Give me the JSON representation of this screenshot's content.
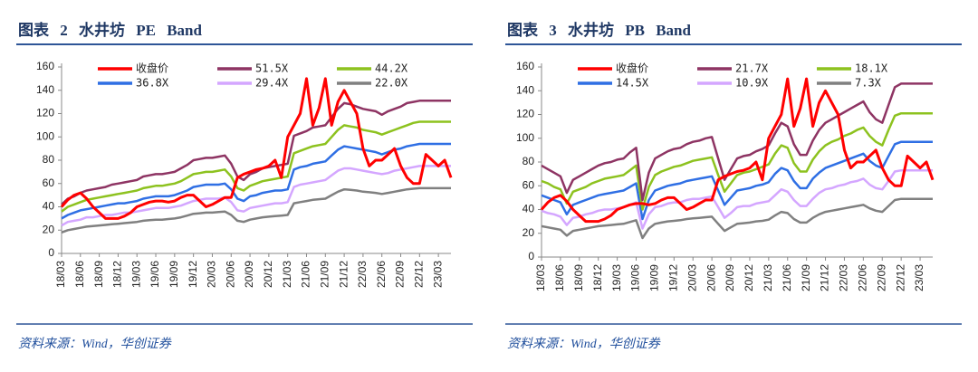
{
  "chart_data": [
    {
      "type": "line",
      "title": "图表 2 水井坊 PE Band",
      "source": "资料来源：Wind，华创证券",
      "categories": [
        "18/03",
        null,
        null,
        "18/06",
        null,
        null,
        "18/09",
        null,
        null,
        "18/12",
        null,
        null,
        "19/03",
        null,
        null,
        "19/06",
        null,
        null,
        "19/09",
        null,
        null,
        "19/12",
        null,
        null,
        "20/03",
        null,
        null,
        "20/06",
        null,
        null,
        "20/09",
        null,
        null,
        "20/12",
        null,
        null,
        "21/03",
        null,
        null,
        "21/06",
        null,
        null,
        "21/09",
        null,
        null,
        "21/12",
        null,
        null,
        "22/03",
        null,
        null,
        "22/06",
        null,
        null,
        "22/09",
        null,
        null,
        "22/12",
        null,
        null,
        "23/03",
        null,
        null
      ],
      "ylim": [
        0,
        160
      ],
      "yticks": [
        0,
        20,
        40,
        60,
        80,
        100,
        120,
        140,
        160
      ],
      "series": [
        {
          "name": "收盘价",
          "color": "#ff0000",
          "values": [
            40,
            46,
            50,
            52,
            47,
            40,
            35,
            30,
            30,
            30,
            32,
            35,
            40,
            42,
            44,
            45,
            45,
            44,
            45,
            48,
            50,
            50,
            45,
            40,
            42,
            45,
            48,
            48,
            65,
            68,
            70,
            72,
            73,
            75,
            80,
            65,
            100,
            110,
            120,
            150,
            110,
            125,
            150,
            110,
            130,
            140,
            130,
            120,
            90,
            75,
            80,
            80,
            85,
            90,
            75,
            65,
            60,
            60,
            85,
            80,
            75,
            80,
            65
          ]
        },
        {
          "name": "51.5X",
          "color": "#8e3463",
          "values": [
            42,
            47,
            49,
            52,
            54,
            55,
            56,
            57,
            59,
            60,
            61,
            62,
            63,
            66,
            67,
            68,
            68,
            69,
            70,
            73,
            76,
            80,
            81,
            82,
            82,
            83,
            84,
            77,
            66,
            63,
            68,
            70,
            73,
            74,
            75,
            76,
            77,
            101,
            103,
            105,
            108,
            109,
            110,
            117,
            124,
            129,
            128,
            126,
            124,
            123,
            122,
            119,
            122,
            124,
            126,
            129,
            130,
            131,
            131,
            131,
            131,
            131,
            131
          ]
        },
        {
          "name": "44.2X",
          "color": "#8dc21f",
          "values": [
            36,
            40,
            42,
            44,
            46,
            47,
            48,
            49,
            50,
            51,
            52,
            53,
            54,
            56,
            57,
            58,
            58,
            59,
            60,
            62,
            65,
            68,
            69,
            70,
            70,
            71,
            72,
            66,
            56,
            54,
            58,
            60,
            62,
            63,
            64,
            65,
            66,
            86,
            88,
            90,
            92,
            93,
            94,
            100,
            106,
            110,
            109,
            108,
            106,
            105,
            104,
            102,
            104,
            106,
            108,
            110,
            112,
            113,
            113,
            113,
            113,
            113,
            113
          ]
        },
        {
          "name": "36.8X",
          "color": "#2f6fe4",
          "values": [
            30,
            33,
            35,
            37,
            38,
            39,
            40,
            41,
            42,
            43,
            43,
            44,
            45,
            47,
            48,
            49,
            49,
            49,
            50,
            52,
            54,
            57,
            58,
            59,
            59,
            59,
            60,
            55,
            47,
            45,
            49,
            50,
            52,
            53,
            54,
            54,
            55,
            72,
            74,
            75,
            77,
            78,
            79,
            84,
            89,
            92,
            91,
            90,
            89,
            88,
            87,
            85,
            87,
            89,
            90,
            92,
            93,
            94,
            94,
            94,
            94,
            94,
            94
          ]
        },
        {
          "name": "29.4X",
          "color": "#d4a6ff",
          "values": [
            24,
            27,
            28,
            29,
            31,
            31,
            32,
            33,
            33,
            34,
            35,
            35,
            36,
            37,
            38,
            39,
            39,
            39,
            40,
            41,
            43,
            45,
            46,
            47,
            47,
            47,
            48,
            44,
            37,
            36,
            39,
            40,
            41,
            42,
            43,
            43,
            44,
            57,
            59,
            60,
            61,
            62,
            63,
            67,
            71,
            73,
            73,
            72,
            71,
            70,
            69,
            68,
            69,
            71,
            72,
            73,
            74,
            75,
            75,
            75,
            75,
            75,
            75
          ]
        },
        {
          "name": "22.0X",
          "color": "#808080",
          "values": [
            18,
            20,
            21,
            22,
            23,
            23.5,
            24,
            24.5,
            25,
            25.5,
            26,
            26.5,
            27,
            28,
            28.5,
            29,
            29,
            29.5,
            30,
            31,
            32.5,
            34,
            34.5,
            35,
            35,
            35.5,
            36,
            33,
            28,
            27,
            29,
            30,
            31,
            31.5,
            32,
            32.5,
            33,
            43,
            44,
            45,
            46,
            46.5,
            47,
            50,
            53,
            55,
            54.5,
            54,
            53,
            52.5,
            52,
            51,
            52,
            53,
            54,
            55,
            55.5,
            56,
            56,
            56,
            56,
            56,
            56
          ]
        }
      ]
    },
    {
      "type": "line",
      "title": "图表 3 水井坊 PB Band",
      "source": "资料来源：Wind，华创证券",
      "categories": [
        "18/03",
        null,
        null,
        "18/06",
        null,
        null,
        "18/09",
        null,
        null,
        "18/12",
        null,
        null,
        "19/03",
        null,
        null,
        "19/06",
        null,
        null,
        "19/09",
        null,
        null,
        "19/12",
        null,
        null,
        "20/03",
        null,
        null,
        "20/06",
        null,
        null,
        "20/09",
        null,
        null,
        "20/12",
        null,
        null,
        "21/03",
        null,
        null,
        "21/06",
        null,
        null,
        "21/09",
        null,
        null,
        "21/12",
        null,
        null,
        "22/03",
        null,
        null,
        "22/06",
        null,
        null,
        "22/09",
        null,
        null,
        "22/12",
        null,
        null,
        "23/03",
        null,
        null
      ],
      "ylim": [
        0,
        160
      ],
      "yticks": [
        0,
        20,
        40,
        60,
        80,
        100,
        120,
        140,
        160
      ],
      "series": [
        {
          "name": "收盘价",
          "color": "#ff0000",
          "values": [
            40,
            46,
            50,
            52,
            47,
            40,
            35,
            30,
            30,
            30,
            32,
            35,
            40,
            42,
            44,
            45,
            45,
            44,
            45,
            48,
            50,
            50,
            45,
            40,
            42,
            45,
            48,
            48,
            65,
            68,
            70,
            72,
            73,
            75,
            80,
            65,
            100,
            110,
            120,
            150,
            110,
            125,
            150,
            110,
            130,
            140,
            130,
            120,
            90,
            75,
            80,
            80,
            85,
            90,
            75,
            65,
            60,
            60,
            85,
            80,
            75,
            80,
            65
          ]
        },
        {
          "name": "21.7X",
          "color": "#8e3463",
          "values": [
            77,
            74,
            71,
            68,
            54,
            65,
            68,
            71,
            74,
            77,
            79,
            80,
            82,
            83,
            88,
            92,
            48,
            71,
            83,
            86,
            89,
            91,
            92,
            95,
            97,
            98,
            100,
            101,
            83,
            65,
            74,
            83,
            85,
            86,
            89,
            91,
            94,
            104,
            113,
            110,
            95,
            86,
            86,
            98,
            107,
            113,
            116,
            119,
            122,
            125,
            128,
            131,
            122,
            116,
            113,
            128,
            143,
            146,
            146,
            146,
            146,
            146,
            146
          ]
        },
        {
          "name": "18.1X",
          "color": "#8dc21f",
          "values": [
            64,
            62,
            59,
            57,
            45,
            55,
            57,
            59,
            62,
            64,
            66,
            67,
            68,
            69,
            73,
            77,
            40,
            59,
            69,
            72,
            74,
            76,
            77,
            79,
            81,
            82,
            83,
            84,
            69,
            55,
            62,
            69,
            71,
            72,
            74,
            76,
            78,
            87,
            94,
            92,
            79,
            72,
            72,
            82,
            89,
            94,
            97,
            99,
            102,
            104,
            107,
            109,
            102,
            97,
            94,
            107,
            119,
            121,
            121,
            121,
            121,
            121,
            121
          ]
        },
        {
          "name": "14.5X",
          "color": "#2f6fe4",
          "values": [
            52,
            50,
            48,
            46,
            36,
            44,
            46,
            48,
            50,
            52,
            53,
            54,
            55,
            56,
            59,
            62,
            32,
            48,
            56,
            58,
            60,
            61,
            62,
            64,
            65,
            66,
            67,
            68,
            56,
            44,
            50,
            56,
            57,
            58,
            60,
            61,
            63,
            70,
            75,
            73,
            64,
            58,
            58,
            66,
            71,
            75,
            77,
            79,
            81,
            83,
            85,
            87,
            81,
            77,
            75,
            85,
            95,
            97,
            97,
            97,
            97,
            97,
            97
          ]
        },
        {
          "name": "10.9X",
          "color": "#d4a6ff",
          "values": [
            39,
            37,
            36,
            34,
            27,
            33,
            34,
            36,
            37,
            39,
            40,
            40,
            41,
            42,
            44,
            46,
            24,
            36,
            42,
            43,
            45,
            46,
            46,
            48,
            49,
            49,
            50,
            51,
            42,
            33,
            37,
            42,
            43,
            43,
            45,
            46,
            47,
            52,
            57,
            55,
            48,
            43,
            43,
            49,
            54,
            57,
            58,
            60,
            61,
            63,
            64,
            66,
            61,
            58,
            57,
            64,
            72,
            73,
            73,
            73,
            73,
            73,
            73
          ]
        },
        {
          "name": "7.3X",
          "color": "#808080",
          "values": [
            26,
            25,
            24,
            23,
            18,
            22,
            23,
            24,
            25,
            26,
            26.5,
            27,
            27.5,
            28,
            29.5,
            31,
            16,
            24,
            28,
            29,
            30,
            30.5,
            31,
            32,
            32.5,
            33,
            33.5,
            34,
            28,
            22,
            25,
            28,
            28.5,
            29,
            30,
            30.5,
            31.5,
            35,
            38,
            37,
            32,
            29,
            29,
            33,
            36,
            38,
            39,
            40,
            41,
            42,
            43,
            44,
            41,
            39,
            38,
            43,
            48,
            49,
            49,
            49,
            49,
            49,
            49
          ]
        }
      ]
    }
  ]
}
